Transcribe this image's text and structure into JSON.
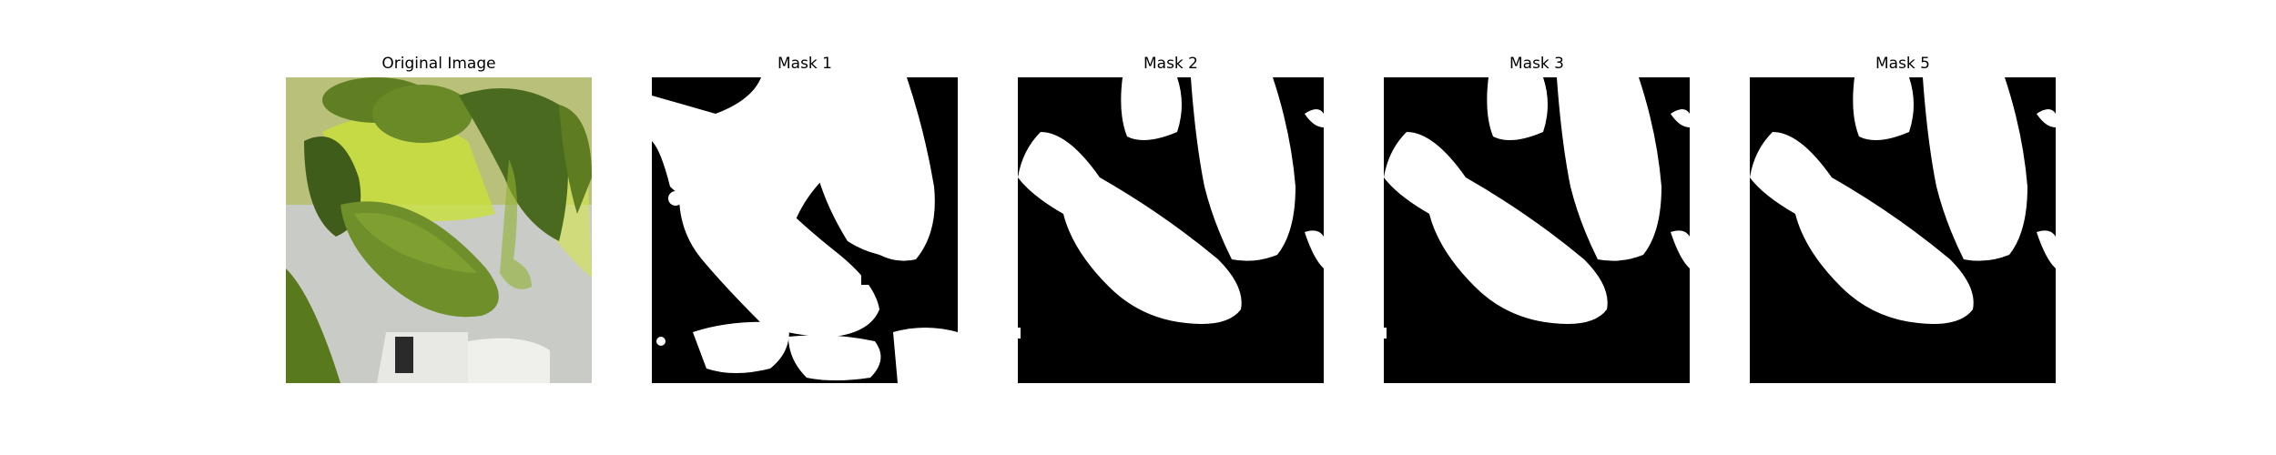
{
  "panels": [
    {
      "title": "Original Image",
      "kind": "photo"
    },
    {
      "title": "Mask 1",
      "kind": "mask"
    },
    {
      "title": "Mask 2",
      "kind": "mask"
    },
    {
      "title": "Mask 3",
      "kind": "mask"
    },
    {
      "title": "Mask 5",
      "kind": "mask"
    }
  ],
  "colors": {
    "mask_background": "#000000",
    "mask_foreground": "#ffffff",
    "leaf_dark": "#4a6b1f",
    "leaf_mid": "#6f8f2a",
    "leaf_bright": "#c9e03a",
    "photo_background": "#c9cbc7"
  }
}
